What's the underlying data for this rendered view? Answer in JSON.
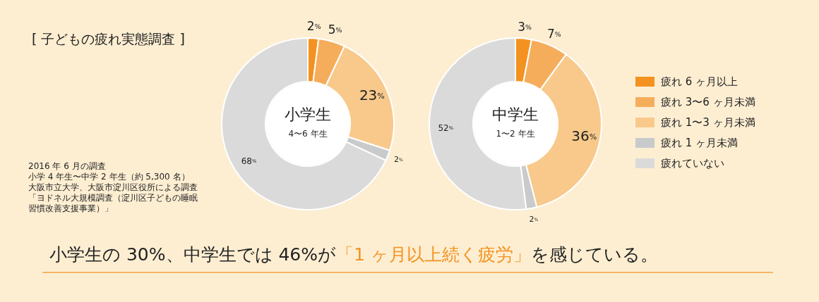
{
  "chart_data": [
    {
      "type": "donut",
      "title": "小学生",
      "subtitle": "4〜6 年生",
      "categories": [
        "疲れ 6 ヶ月以上",
        "疲れ 3〜6 ヶ月未満",
        "疲れ 1〜3 ヶ月未満",
        "疲れ 1 ヶ月未満",
        "疲れていない"
      ],
      "values": [
        2,
        5,
        23,
        2,
        68
      ],
      "value_labels": [
        "2%",
        "5%",
        "23%",
        "2%",
        "68%"
      ],
      "colors": [
        "#f39220",
        "#f5ad5c",
        "#f8c98b",
        "#c8cacc",
        "#dadada"
      ],
      "legend": "right"
    },
    {
      "type": "donut",
      "title": "中学生",
      "subtitle": "1〜2 年生",
      "categories": [
        null,
        null,
        null,
        null,
        null
      ],
      "values": [
        3,
        7,
        36,
        2,
        52
      ],
      "value_labels": [
        "3%",
        "7%",
        "36%",
        "2%",
        "52%"
      ],
      "colors": [
        "#f39220",
        "#f5ad5c",
        "#f8c98b",
        "#c8cacc",
        "#dadada"
      ]
    },
    {
      "type": "other",
      "title": "[ 子どもの疲れ実態調査 ]",
      "annotations": [
        "2016 年 6 月の調査",
        "小学 4 年生〜中学 2 年生（約 5,300 名）",
        "大阪市立大学、大阪市淀川区役所による調査",
        "「ヨドネル大規模調査（淀川区子どもの睡眠",
        "習慣改善支援事業）」"
      ]
    },
    {
      "type": "other",
      "annotations": [
        "小学生の 30%、中学生では 46%が",
        "「1 ヶ月以上続く疲労」",
        "を感じている。"
      ]
    }
  ]
}
